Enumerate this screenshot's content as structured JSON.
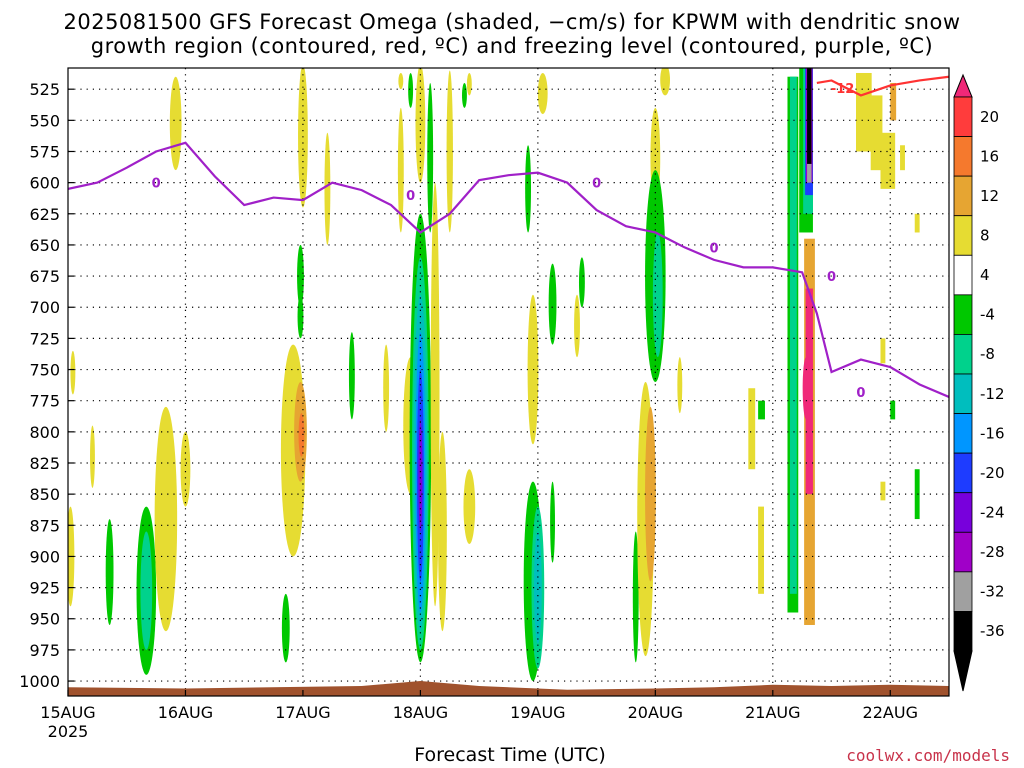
{
  "title_line1": "2025081500 GFS Forecast Omega (shaded, −cm/s) for KPWM with dendritic snow",
  "title_line2": "growth region (contoured, red, ºC) and freezing level (contoured, purple, ºC)",
  "xlabel": "Forecast Time (UTC)",
  "credit": "coolwx.com/models",
  "chart_data": {
    "type": "heatmap",
    "title": "2025081500 GFS Forecast Omega (shaded, −cm/s) for KPWM with dendritic snow growth region (contoured, red, ºC) and freezing level (contoured, purple, ºC)",
    "xlabel": "Forecast Time (UTC)",
    "ylabel": "",
    "x_start": "2025-08-15T00",
    "x_end": "2025-08-22T12",
    "x_ticks": [
      "15AUG",
      "16AUG",
      "17AUG",
      "18AUG",
      "19AUG",
      "20AUG",
      "21AUG",
      "22AUG"
    ],
    "x_tick_year": "2025",
    "y_ticks": [
      525,
      550,
      575,
      600,
      625,
      650,
      675,
      700,
      725,
      750,
      775,
      800,
      825,
      850,
      875,
      900,
      925,
      950,
      975,
      1000
    ],
    "ylim": [
      1012,
      508
    ],
    "grid": true,
    "colorbar": {
      "labels": [
        20,
        16,
        12,
        8,
        4,
        -4,
        -8,
        -12,
        -16,
        -20,
        -24,
        -28,
        -32,
        -36
      ],
      "colors": [
        "#ff3c3c",
        "#f5792d",
        "#e6a532",
        "#e6dc32",
        "#ffffff",
        "#00c800",
        "#00d28c",
        "#00bebe",
        "#0096ff",
        "#1e3cff",
        "#7800dc",
        "#a000c8",
        "#a0a0a0",
        "#000000"
      ],
      "top_color": "#f02878",
      "bottom_color": "#000000"
    },
    "freezing_level": {
      "label": "0",
      "color": "#a020c8",
      "time": [
        "2025-08-15T00",
        "2025-08-15T06",
        "2025-08-15T12",
        "2025-08-15T18",
        "2025-08-16T00",
        "2025-08-16T06",
        "2025-08-16T12",
        "2025-08-16T18",
        "2025-08-17T00",
        "2025-08-17T06",
        "2025-08-17T12",
        "2025-08-17T18",
        "2025-08-18T00",
        "2025-08-18T06",
        "2025-08-18T12",
        "2025-08-18T18",
        "2025-08-19T00",
        "2025-08-19T06",
        "2025-08-19T12",
        "2025-08-19T18",
        "2025-08-20T00",
        "2025-08-20T06",
        "2025-08-20T12",
        "2025-08-20T18",
        "2025-08-21T00",
        "2025-08-21T06",
        "2025-08-21T09",
        "2025-08-21T12",
        "2025-08-21T18",
        "2025-08-22T00",
        "2025-08-22T06",
        "2025-08-22T12"
      ],
      "pressure": [
        605,
        600,
        588,
        575,
        568,
        595,
        618,
        612,
        614,
        600,
        606,
        618,
        640,
        625,
        598,
        594,
        592,
        600,
        622,
        635,
        640,
        652,
        662,
        668,
        668,
        672,
        705,
        752,
        742,
        748,
        762,
        772
      ]
    },
    "dgz_contour": {
      "label": "-12",
      "color": "#ff3232",
      "time": [
        "2025-08-21T09",
        "2025-08-21T12",
        "2025-08-21T18",
        "2025-08-22T00",
        "2025-08-22T06",
        "2025-08-22T12"
      ],
      "pressure": [
        520,
        518,
        530,
        522,
        518,
        515
      ]
    }
  }
}
